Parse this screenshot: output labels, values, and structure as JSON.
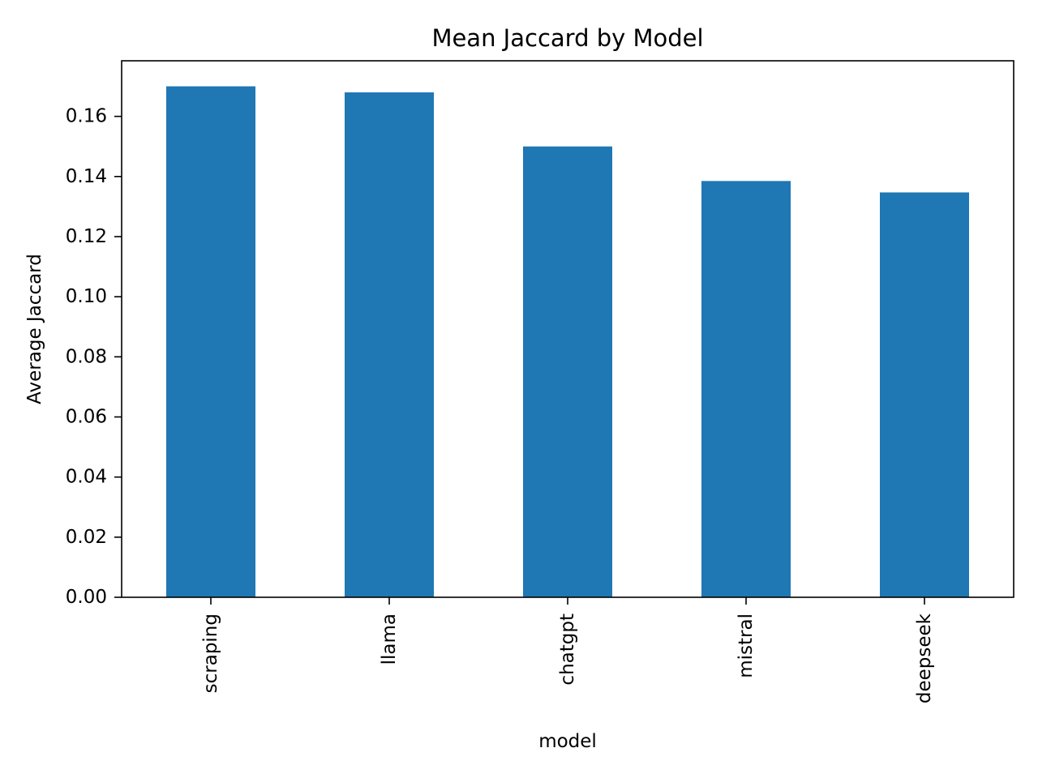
{
  "chart_data": {
    "type": "bar",
    "title": "Mean Jaccard by Model",
    "xlabel": "model",
    "ylabel": "Average Jaccard",
    "categories": [
      "scraping",
      "llama",
      "chatgpt",
      "mistral",
      "deepseek"
    ],
    "values": [
      0.17,
      0.168,
      0.15,
      0.1385,
      0.1347
    ],
    "ylim": [
      0,
      0.1785
    ],
    "yticks": [
      0.0,
      0.02,
      0.04,
      0.06,
      0.08,
      0.1,
      0.12,
      0.14,
      0.16
    ],
    "ytick_labels": [
      "0.00",
      "0.02",
      "0.04",
      "0.06",
      "0.08",
      "0.10",
      "0.12",
      "0.14",
      "0.16"
    ],
    "bar_color": "#1f77b4",
    "grid": false,
    "legend": "none"
  }
}
